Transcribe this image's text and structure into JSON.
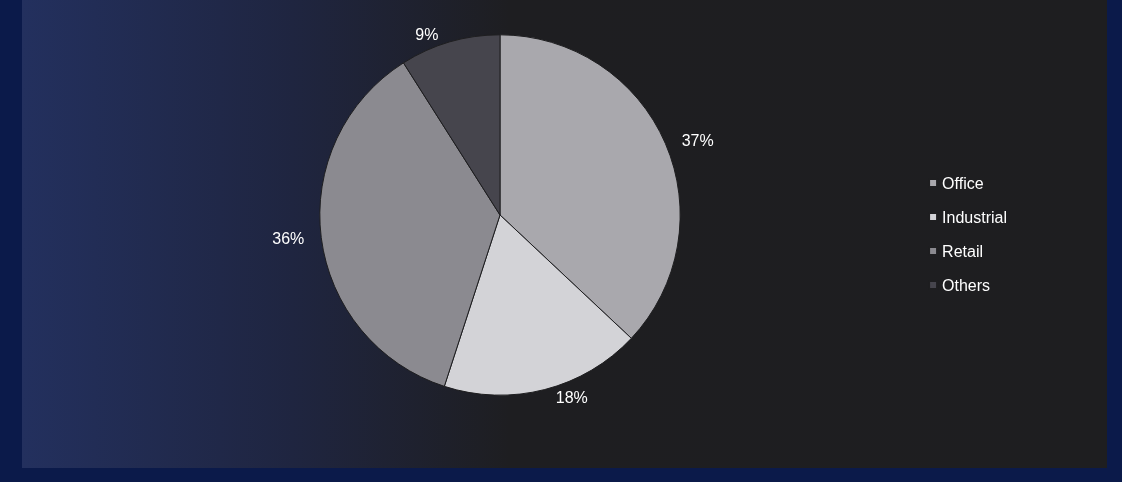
{
  "chart_data": {
    "type": "pie",
    "categories": [
      "Office",
      "Industrial",
      "Retail",
      "Others"
    ],
    "values": [
      37,
      18,
      36,
      9
    ],
    "value_labels": [
      "37%",
      "18%",
      "36%",
      "9%"
    ],
    "colors": [
      "#a9a8ad",
      "#d3d3d7",
      "#8b8a90",
      "#46454d"
    ],
    "legend": "right"
  }
}
